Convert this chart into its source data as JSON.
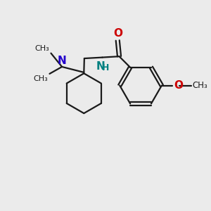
{
  "background_color": "#ebebeb",
  "bond_color": "#1a1a1a",
  "n_color": "#2200cc",
  "o_color": "#cc0000",
  "nh_color": "#008080",
  "figsize": [
    3.0,
    3.0
  ],
  "dpi": 100,
  "xlim": [
    0,
    10
  ],
  "ylim": [
    0,
    10
  ]
}
